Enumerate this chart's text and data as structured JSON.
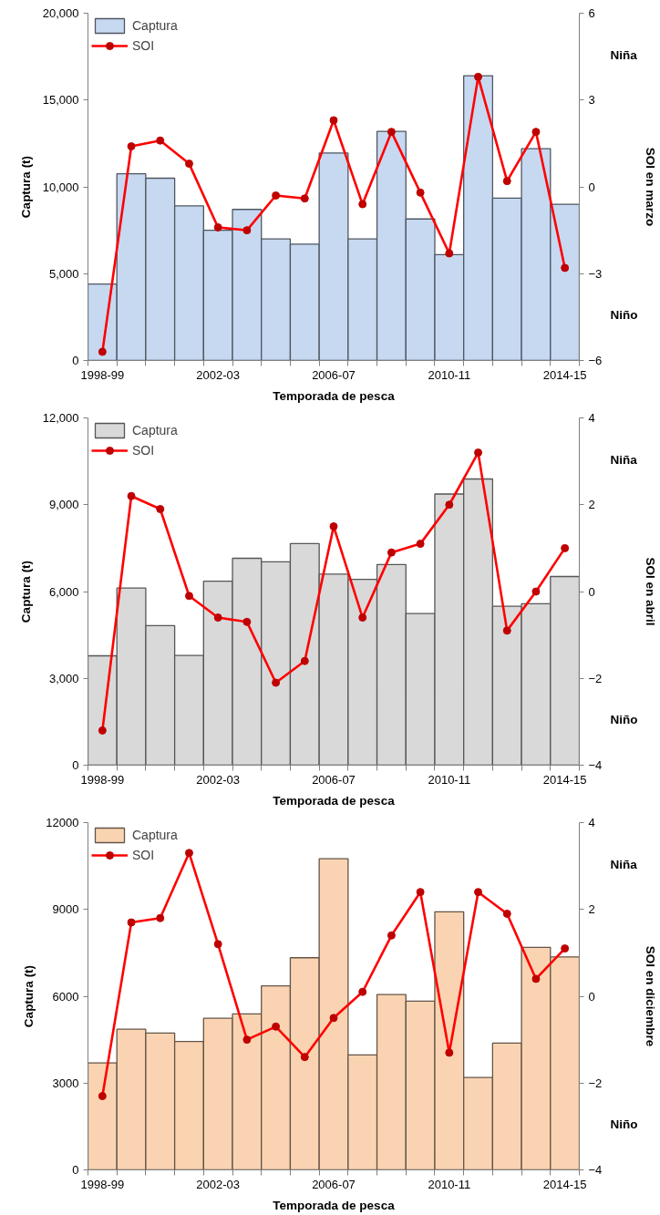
{
  "chart_data": [
    {
      "type": "bar",
      "xlabel": "Temporada de pesca",
      "ylabel": "Captura (t)",
      "y2label": "SOI en marzo",
      "categories": [
        "1998-99",
        null,
        null,
        null,
        "2002-03",
        null,
        null,
        null,
        "2006-07",
        null,
        null,
        null,
        "2010-11",
        null,
        null,
        null,
        "2014-15"
      ],
      "ylim": [
        0,
        20000
      ],
      "yticks": [
        0,
        {
          "value": 5000,
          "label": "5,000"
        },
        {
          "value": 10000,
          "label": "10,000"
        },
        {
          "value": 15000,
          "label": "15,000"
        },
        {
          "value": 20000,
          "label": "20,000"
        }
      ],
      "y2lim": [
        -6,
        6
      ],
      "y2ticks": [
        -6,
        -3,
        0,
        3,
        6
      ],
      "series": [
        {
          "name": "Captura",
          "color": "#c6d9f1",
          "values": [
            4400,
            10750,
            10500,
            8900,
            7500,
            8700,
            7000,
            6700,
            11950,
            7000,
            13200,
            8150,
            6100,
            16400,
            9350,
            12200,
            9000
          ]
        },
        {
          "name": "SOI",
          "type": "line",
          "axis": "y2",
          "color": "#ff0000",
          "values": [
            -5.7,
            1.4,
            1.6,
            0.8,
            -1.4,
            -1.5,
            -0.3,
            -0.4,
            2.3,
            -0.6,
            1.9,
            -0.2,
            -2.3,
            3.8,
            0.2,
            1.9,
            -2.8
          ]
        }
      ],
      "marker": "circle",
      "legend": "top left",
      "grid": false,
      "annotations": [
        "Niña",
        "Niño"
      ]
    },
    {
      "type": "bar",
      "xlabel": "Temporada de pesca",
      "ylabel": "Captura (t)",
      "y2label": "SOI en abril",
      "categories": [
        "1998-99",
        null,
        null,
        null,
        "2002-03",
        null,
        null,
        null,
        "2006-07",
        null,
        null,
        null,
        "2010-11",
        null,
        null,
        null,
        "2014-15"
      ],
      "ylim": [
        0,
        12000
      ],
      "yticks": [
        0,
        {
          "value": 3000,
          "label": "3,000"
        },
        {
          "value": 6000,
          "label": "6,000"
        },
        {
          "value": 9000,
          "label": "9,000"
        },
        {
          "value": 12000,
          "label": "12,000"
        }
      ],
      "y2lim": [
        -4,
        4
      ],
      "y2ticks": [
        -4,
        -2,
        0,
        2,
        4
      ],
      "series": [
        {
          "name": "Captura",
          "color": "#d9d9d9",
          "values": [
            3780,
            6120,
            4820,
            3790,
            6360,
            7150,
            7030,
            7660,
            6600,
            6420,
            6930,
            5240,
            9370,
            9890,
            5490,
            5580,
            6520
          ]
        },
        {
          "name": "SOI",
          "type": "line",
          "axis": "y2",
          "color": "#ff0000",
          "values": [
            -3.2,
            2.2,
            1.9,
            -0.1,
            -0.6,
            -0.7,
            -2.1,
            -1.6,
            1.5,
            -0.6,
            0.9,
            1.1,
            2.0,
            3.2,
            -0.9,
            0.0,
            1.0
          ]
        }
      ],
      "marker": "circle",
      "legend": "top left",
      "grid": false,
      "annotations": [
        "Niña",
        "Niño"
      ]
    },
    {
      "type": "bar",
      "xlabel": "Temporada de pesca",
      "ylabel": "Captura (t)",
      "y2label": "SOI en diciembre",
      "categories": [
        "1998-99",
        null,
        null,
        null,
        "2002-03",
        null,
        null,
        null,
        "2006-07",
        null,
        null,
        null,
        "2010-11",
        null,
        null,
        null,
        "2014-15"
      ],
      "ylim": [
        0,
        12000
      ],
      "yticks": [
        0,
        3000,
        6000,
        9000,
        12000
      ],
      "y2lim": [
        -4,
        4
      ],
      "y2ticks": [
        -4,
        -2,
        0,
        2,
        4
      ],
      "series": [
        {
          "name": "Captura",
          "color": "#fad4b2",
          "values": [
            3700,
            4860,
            4730,
            4440,
            5240,
            5390,
            6360,
            7330,
            10750,
            3970,
            6060,
            5830,
            8920,
            3190,
            4380,
            7690,
            7360
          ]
        },
        {
          "name": "SOI",
          "type": "line",
          "axis": "y2",
          "color": "#ff0000",
          "values": [
            -2.3,
            1.7,
            1.8,
            3.3,
            1.2,
            -1.0,
            -0.7,
            -1.4,
            -0.5,
            0.1,
            1.4,
            2.4,
            -1.3,
            2.4,
            1.9,
            0.4,
            1.1
          ]
        }
      ],
      "marker": "circle",
      "legend": "top left",
      "grid": false,
      "annotations": [
        "Niña",
        "Niño"
      ]
    }
  ]
}
